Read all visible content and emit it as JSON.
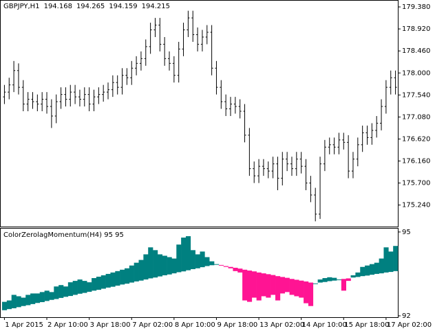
{
  "chart_data": [
    {
      "type": "ohlc",
      "title": "GBPJPY,H1",
      "quote": [
        194.168,
        194.265,
        194.159,
        194.215
      ],
      "color": "#000000",
      "categories": [
        "1 Apr 2015",
        null,
        null,
        null,
        null,
        null,
        null,
        null,
        null,
        "2 Apr 10:00",
        null,
        null,
        null,
        null,
        null,
        null,
        null,
        null,
        "3 Apr 18:00",
        null,
        null,
        null,
        null,
        null,
        null,
        null,
        null,
        "7 Apr 02:00",
        null,
        null,
        null,
        null,
        null,
        null,
        null,
        null,
        "8 Apr 10:00",
        null,
        null,
        null,
        null,
        null,
        null,
        null,
        null,
        "9 Apr 18:00",
        null,
        null,
        null,
        null,
        null,
        null,
        null,
        null,
        "13 Apr 02:00",
        null,
        null,
        null,
        null,
        null,
        null,
        null,
        null,
        "14 Apr 10:00",
        null,
        null,
        null,
        null,
        null,
        null,
        null,
        null,
        "15 Apr 18:00",
        null,
        null,
        null,
        null,
        null,
        null,
        null,
        null,
        "17 Apr 02:00",
        null,
        null
      ],
      "open": [
        177.5,
        177.6,
        177.75,
        178.05,
        177.7,
        177.35,
        177.45,
        177.4,
        177.35,
        177.45,
        177.3,
        177.1,
        177.4,
        177.55,
        177.45,
        177.6,
        177.5,
        177.45,
        177.55,
        177.35,
        177.5,
        177.55,
        177.6,
        177.65,
        177.8,
        177.7,
        177.95,
        177.9,
        178.1,
        178.2,
        178.3,
        178.55,
        178.9,
        179.0,
        178.6,
        178.3,
        178.2,
        177.95,
        178.5,
        178.9,
        179.15,
        178.8,
        178.6,
        178.75,
        178.85,
        178.1,
        177.7,
        177.4,
        177.25,
        177.35,
        177.3,
        177.2,
        176.7,
        176.0,
        175.85,
        176.05,
        176.0,
        175.95,
        176.1,
        175.8,
        176.2,
        176.1,
        176.0,
        176.2,
        176.05,
        175.7,
        175.45,
        175.05,
        176.1,
        176.45,
        176.5,
        176.45,
        176.6,
        176.55,
        175.95,
        176.2,
        176.5,
        176.75,
        176.65,
        176.8,
        176.95,
        177.3,
        177.7,
        177.9
      ],
      "high": [
        177.75,
        177.9,
        178.25,
        178.2,
        177.85,
        177.6,
        177.6,
        177.55,
        177.6,
        177.6,
        177.45,
        177.55,
        177.7,
        177.7,
        177.75,
        177.75,
        177.65,
        177.7,
        177.7,
        177.65,
        177.7,
        177.75,
        177.8,
        177.95,
        177.95,
        178.1,
        178.1,
        178.25,
        178.35,
        178.45,
        178.7,
        179.05,
        179.15,
        179.15,
        178.75,
        178.45,
        178.35,
        178.65,
        179.05,
        179.3,
        179.3,
        178.95,
        178.9,
        179.0,
        179.0,
        178.25,
        177.85,
        177.55,
        177.5,
        177.5,
        177.45,
        177.35,
        176.85,
        176.15,
        176.2,
        176.2,
        176.15,
        176.25,
        176.25,
        176.35,
        176.35,
        176.25,
        176.35,
        176.35,
        176.2,
        175.85,
        175.6,
        176.25,
        176.6,
        176.65,
        176.65,
        176.75,
        176.75,
        176.7,
        176.35,
        176.65,
        176.9,
        176.9,
        176.95,
        177.1,
        177.45,
        177.85,
        178.05,
        178.05
      ],
      "low": [
        177.35,
        177.45,
        177.6,
        177.55,
        177.2,
        177.2,
        177.25,
        177.2,
        177.2,
        177.15,
        176.85,
        176.95,
        177.25,
        177.3,
        177.3,
        177.35,
        177.3,
        177.3,
        177.2,
        177.2,
        177.35,
        177.4,
        177.45,
        177.5,
        177.55,
        177.55,
        177.75,
        177.75,
        177.95,
        178.05,
        178.15,
        178.4,
        178.75,
        178.45,
        178.15,
        178.05,
        177.8,
        177.8,
        178.35,
        178.75,
        178.65,
        178.45,
        178.45,
        178.6,
        177.95,
        177.55,
        177.25,
        177.1,
        177.1,
        177.15,
        177.05,
        176.55,
        175.85,
        175.7,
        175.7,
        175.85,
        175.8,
        175.8,
        175.55,
        175.65,
        175.95,
        175.85,
        175.85,
        175.9,
        175.55,
        175.3,
        174.9,
        174.95,
        175.95,
        176.3,
        176.3,
        176.3,
        176.4,
        175.8,
        175.8,
        176.05,
        176.35,
        176.5,
        176.5,
        176.65,
        176.8,
        177.15,
        177.55,
        177.55
      ],
      "close": [
        177.6,
        177.75,
        178.05,
        177.7,
        177.35,
        177.45,
        177.4,
        177.35,
        177.45,
        177.3,
        177.1,
        177.4,
        177.55,
        177.45,
        177.6,
        177.5,
        177.45,
        177.55,
        177.35,
        177.5,
        177.55,
        177.6,
        177.65,
        177.8,
        177.7,
        177.95,
        177.9,
        178.1,
        178.2,
        178.3,
        178.55,
        178.9,
        179.0,
        178.6,
        178.3,
        178.2,
        177.95,
        178.5,
        178.9,
        179.15,
        178.8,
        178.6,
        178.75,
        178.85,
        178.1,
        177.7,
        177.4,
        177.25,
        177.35,
        177.3,
        177.2,
        176.7,
        176.0,
        175.85,
        176.05,
        176.0,
        175.95,
        176.1,
        175.8,
        176.2,
        176.1,
        176.0,
        176.2,
        176.05,
        175.7,
        175.45,
        175.05,
        176.1,
        176.45,
        176.5,
        176.45,
        176.6,
        176.55,
        175.95,
        176.2,
        176.5,
        176.75,
        176.65,
        176.8,
        176.95,
        177.3,
        177.7,
        177.9,
        177.7
      ],
      "ylim": [
        174.79,
        179.51
      ],
      "yticks": [
        {
          "value": 179.38,
          "label": "179.380"
        },
        {
          "value": 178.92,
          "label": "178.920"
        },
        {
          "value": 178.46,
          "label": "178.460"
        },
        {
          "value": 178.0,
          "label": "178.000"
        },
        {
          "value": 177.54,
          "label": "177.540"
        },
        {
          "value": 177.08,
          "label": "177.080"
        },
        {
          "value": 176.62,
          "label": "176.620"
        },
        {
          "value": 176.16,
          "label": "176.160"
        },
        {
          "value": 175.7,
          "label": "175.700"
        },
        {
          "value": 175.24,
          "label": "175.240"
        }
      ]
    },
    {
      "type": "band",
      "title": "ColorZerolagMomentum(H4) 95 95",
      "up_color": "#008080",
      "down_color": "#ff1493",
      "momentum": [
        92.5,
        92.55,
        92.75,
        92.7,
        92.65,
        92.75,
        92.8,
        92.8,
        92.85,
        92.9,
        92.85,
        93.05,
        93.1,
        93.05,
        93.2,
        93.25,
        93.3,
        93.25,
        93.2,
        93.35,
        93.4,
        93.45,
        93.5,
        93.55,
        93.6,
        93.65,
        93.7,
        93.8,
        93.9,
        94.0,
        94.2,
        94.45,
        94.35,
        94.2,
        94.15,
        94.1,
        94.05,
        94.55,
        94.8,
        94.85,
        94.35,
        94.2,
        94.3,
        94.1,
        93.95,
        93.85,
        93.8,
        93.75,
        93.7,
        93.6,
        93.55,
        92.55,
        92.5,
        92.65,
        92.55,
        92.7,
        92.65,
        92.75,
        92.55,
        92.8,
        92.85,
        92.75,
        92.7,
        92.65,
        92.45,
        92.35,
        93.16,
        93.3,
        93.35,
        93.38,
        93.36,
        93.3,
        92.9,
        93.25,
        93.45,
        93.55,
        93.75,
        93.8,
        93.85,
        93.9,
        94.05,
        94.45,
        94.3,
        94.5
      ],
      "signal": [
        92.2,
        92.24,
        92.27,
        92.31,
        92.35,
        92.38,
        92.42,
        92.46,
        92.49,
        92.53,
        92.57,
        92.6,
        92.64,
        92.68,
        92.71,
        92.75,
        92.79,
        92.82,
        92.86,
        92.9,
        92.93,
        92.97,
        93.01,
        93.04,
        93.08,
        93.12,
        93.15,
        93.19,
        93.23,
        93.26,
        93.3,
        93.34,
        93.37,
        93.41,
        93.45,
        93.48,
        93.52,
        93.56,
        93.59,
        93.63,
        93.67,
        93.7,
        93.74,
        93.78,
        93.81,
        93.85,
        93.82,
        93.78,
        93.75,
        93.72,
        93.69,
        93.65,
        93.62,
        93.59,
        93.55,
        93.52,
        93.49,
        93.46,
        93.42,
        93.39,
        93.36,
        93.32,
        93.29,
        93.26,
        93.23,
        93.19,
        93.16,
        93.19,
        93.21,
        93.24,
        93.26,
        93.29,
        93.32,
        93.34,
        93.37,
        93.39,
        93.42,
        93.44,
        93.47,
        93.5,
        93.52,
        93.55,
        93.57,
        93.6
      ],
      "ylim": [
        91.95,
        95.12
      ],
      "yticks": [
        92,
        95
      ]
    }
  ]
}
